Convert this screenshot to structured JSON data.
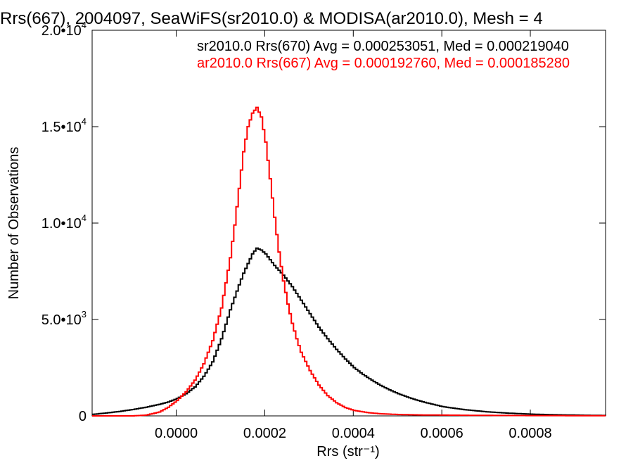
{
  "chart_data": {
    "type": "line",
    "title": "Rrs(667), 2004097, SeaWiFS(sr2010.0) & MODISA(ar2010.0), Mesh = 4",
    "xlabel": "Rrs (str⁻¹)",
    "ylabel": "Number of Observations",
    "xlim": [
      -0.00019,
      0.00097
    ],
    "ylim": [
      0,
      20000
    ],
    "x_ticks": [
      {
        "value": 0.0,
        "label": "0.0000"
      },
      {
        "value": 0.0002,
        "label": "0.0002"
      },
      {
        "value": 0.0004,
        "label": "0.0004"
      },
      {
        "value": 0.0006,
        "label": "0.0006"
      },
      {
        "value": 0.0008,
        "label": "0.0008"
      }
    ],
    "y_ticks": [
      {
        "value": 0,
        "mantissa": "0",
        "exp": ""
      },
      {
        "value": 5000,
        "mantissa": "5.0•10",
        "exp": "3"
      },
      {
        "value": 10000,
        "mantissa": "1.0•10",
        "exp": "4"
      },
      {
        "value": 15000,
        "mantissa": "1.5•10",
        "exp": "4"
      },
      {
        "value": 20000,
        "mantissa": "2.0•10",
        "exp": "4"
      }
    ],
    "grid": false,
    "legend_position": "top-right",
    "annotations": [
      {
        "text": "sr2010.0 Rrs(670) Avg = 0.000253051, Med = 0.000219040",
        "color": "#000000"
      },
      {
        "text": "ar2010.0 Rrs(667) Avg = 0.000192760, Med = 0.000185280",
        "color": "#ff0000"
      }
    ],
    "series": [
      {
        "color": "#000000",
        "x": [
          -0.00019,
          -0.00016,
          -0.00013,
          -0.0001,
          -7e-05,
          -4e-05,
          -2e-05,
          0.0,
          2e-05,
          4e-05,
          6e-05,
          8e-05,
          0.0001,
          0.00012,
          0.00014,
          0.00015,
          0.00016,
          0.00017,
          0.00018,
          0.00019,
          0.0002,
          0.00021,
          0.00022,
          0.00023,
          0.00024,
          0.00026,
          0.00028,
          0.0003,
          0.00032,
          0.00034,
          0.00036,
          0.00038,
          0.0004,
          0.00042,
          0.00044,
          0.00046,
          0.00048,
          0.0005,
          0.00053,
          0.00056,
          0.0006,
          0.00065,
          0.0007,
          0.00075,
          0.0008,
          0.00085,
          0.0009,
          0.00097
        ],
        "y": [
          80,
          150,
          230,
          330,
          450,
          600,
          720,
          900,
          1150,
          1500,
          2050,
          2800,
          4000,
          5500,
          6800,
          7400,
          7900,
          8400,
          8700,
          8600,
          8400,
          8100,
          7800,
          7550,
          7300,
          6700,
          6000,
          5300,
          4600,
          4000,
          3450,
          2950,
          2500,
          2150,
          1850,
          1580,
          1350,
          1150,
          900,
          700,
          480,
          320,
          210,
          140,
          90,
          60,
          40,
          20
        ]
      },
      {
        "color": "#ff0000",
        "x": [
          -0.00019,
          -0.0001,
          -7e-05,
          -4e-05,
          -2e-05,
          0.0,
          2e-05,
          4e-05,
          6e-05,
          8e-05,
          0.0001,
          0.00012,
          0.00013,
          0.00014,
          0.00015,
          0.00016,
          0.00017,
          0.00018,
          0.00019,
          0.0002,
          0.00021,
          0.00022,
          0.00023,
          0.00024,
          0.00025,
          0.00026,
          0.00027,
          0.00028,
          0.0003,
          0.00032,
          0.00034,
          0.00036,
          0.00038,
          0.0004,
          0.00043,
          0.00046,
          0.0005,
          0.00055,
          0.0006,
          0.0007,
          0.0008,
          0.00097
        ],
        "y": [
          0,
          0,
          40,
          200,
          450,
          800,
          1250,
          1850,
          2700,
          3900,
          5600,
          8200,
          9900,
          11800,
          13700,
          15000,
          15700,
          16000,
          15500,
          14200,
          12300,
          10300,
          8500,
          7000,
          5800,
          4800,
          4000,
          3300,
          2350,
          1600,
          1050,
          680,
          430,
          280,
          170,
          110,
          70,
          50,
          40,
          25,
          15,
          10
        ]
      }
    ]
  }
}
